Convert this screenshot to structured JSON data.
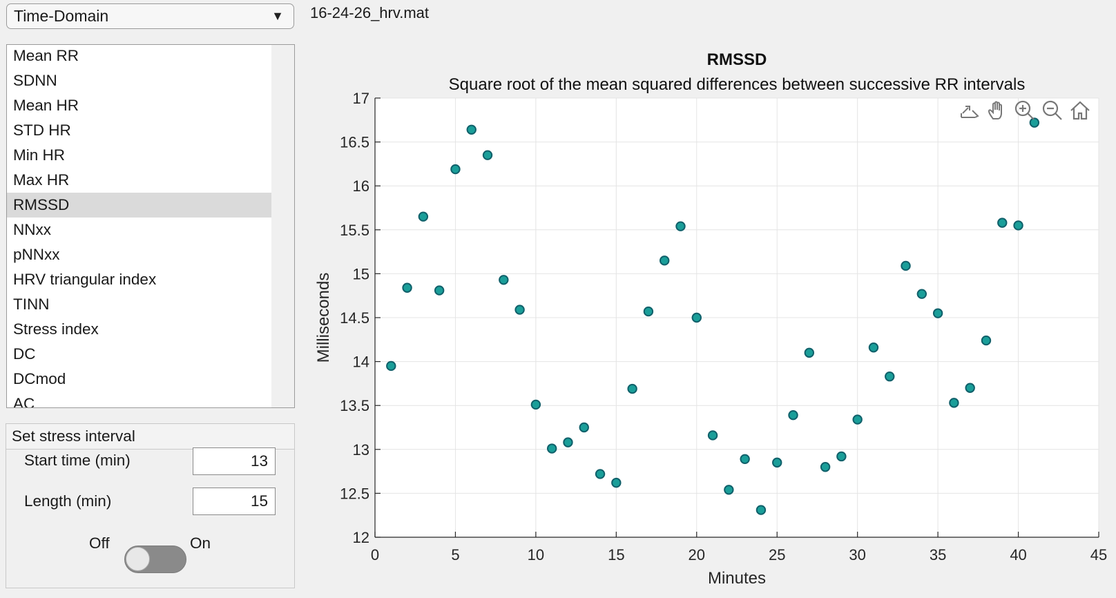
{
  "dropdown": {
    "selected": "Time-Domain"
  },
  "file": {
    "name": "16-24-26_hrv.mat"
  },
  "metrics_list": {
    "items": [
      "Mean RR",
      "SDNN",
      "Mean HR",
      "STD HR",
      "Min HR",
      "Max HR",
      "RMSSD",
      "NNxx",
      "pNNxx",
      "HRV triangular index",
      "TINN",
      "Stress index",
      "DC",
      "DCmod",
      "AC"
    ],
    "selected": "RMSSD"
  },
  "stress_panel": {
    "title": "Set stress interval",
    "start_label": "Start time (min)",
    "start_value": "13",
    "length_label": "Length (min)",
    "length_value": "15",
    "toggle_off_label": "Off",
    "toggle_on_label": "On",
    "toggle_state": "off"
  },
  "toolbar_icons": [
    "export-icon",
    "pan-icon",
    "zoom-in-icon",
    "zoom-out-icon",
    "home-icon"
  ],
  "chart_data": {
    "type": "scatter",
    "title": "RMSSD",
    "subtitle": "Square root of the mean squared differences between successive RR intervals",
    "xlabel": "Minutes",
    "ylabel": "Milliseconds",
    "xlim": [
      0,
      45
    ],
    "ylim": [
      12,
      17
    ],
    "xticks": [
      0,
      5,
      10,
      15,
      20,
      25,
      30,
      35,
      40,
      45
    ],
    "yticks": [
      12,
      12.5,
      13,
      13.5,
      14,
      14.5,
      15,
      15.5,
      16,
      16.5,
      17
    ],
    "grid": true,
    "marker_color": "#1a9e99",
    "marker_edge": "#10606a",
    "x": [
      1,
      2,
      3,
      4,
      5,
      6,
      7,
      8,
      9,
      10,
      11,
      12,
      13,
      14,
      15,
      16,
      17,
      18,
      19,
      20,
      21,
      22,
      23,
      24,
      25,
      26,
      27,
      28,
      29,
      30,
      31,
      32,
      33,
      34,
      35,
      36,
      37,
      38,
      39,
      40,
      41
    ],
    "y": [
      13.95,
      14.84,
      15.65,
      14.81,
      16.19,
      16.64,
      16.35,
      14.93,
      14.59,
      13.51,
      13.01,
      13.08,
      13.25,
      12.72,
      12.62,
      13.69,
      14.57,
      15.15,
      15.54,
      14.5,
      13.16,
      12.54,
      12.89,
      12.31,
      12.85,
      13.39,
      14.1,
      12.8,
      12.92,
      13.34,
      14.16,
      13.83,
      15.09,
      14.77,
      14.55,
      13.53,
      13.7,
      14.24,
      15.58,
      15.55,
      16.72
    ]
  }
}
